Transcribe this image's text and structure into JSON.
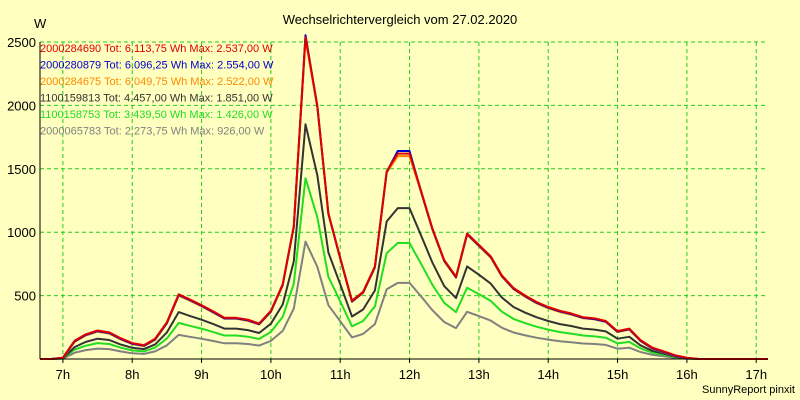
{
  "chart_data": {
    "type": "line",
    "title": "Wechselrichtervergleich vom 27.02.2020",
    "ylabel": "W",
    "xlabel": "",
    "credit": "SunnyReport pinxit",
    "xlim": [
      6.67,
      17.17
    ],
    "ylim": [
      0,
      2500
    ],
    "yticks": [
      500,
      1000,
      1500,
      2000,
      2500
    ],
    "xticks": [
      7,
      8,
      9,
      10,
      11,
      12,
      13,
      14,
      15,
      16,
      17
    ],
    "xtick_labels": [
      "7h",
      "8h",
      "9h",
      "10h",
      "11h",
      "12h",
      "13h",
      "14h",
      "15h",
      "16h",
      "17h"
    ],
    "grid": true,
    "legend_position": "top-left",
    "x": [
      6.67,
      6.83,
      7.0,
      7.17,
      7.33,
      7.5,
      7.67,
      7.83,
      8.0,
      8.17,
      8.33,
      8.5,
      8.67,
      8.83,
      9.0,
      9.17,
      9.33,
      9.5,
      9.67,
      9.83,
      10.0,
      10.17,
      10.33,
      10.5,
      10.67,
      10.83,
      11.0,
      11.17,
      11.33,
      11.5,
      11.67,
      11.83,
      12.0,
      12.17,
      12.33,
      12.5,
      12.67,
      12.83,
      13.0,
      13.17,
      13.33,
      13.5,
      13.67,
      13.83,
      14.0,
      14.17,
      14.33,
      14.5,
      14.67,
      14.83,
      15.0,
      15.17,
      15.33,
      15.5,
      15.67,
      15.83,
      16.0,
      16.17,
      16.33,
      16.5,
      16.67,
      16.83,
      17.0,
      17.17
    ],
    "series": [
      {
        "name": "2000284690 Tot: 6.113,75 Wh Max: 2.537,00 W",
        "color": "#e00000",
        "values": [
          0,
          0,
          10,
          145,
          195,
          225,
          210,
          165,
          125,
          110,
          160,
          290,
          510,
          470,
          425,
          375,
          325,
          325,
          310,
          280,
          380,
          590,
          1050,
          2537,
          2000,
          1150,
          800,
          460,
          530,
          730,
          1480,
          1620,
          1620,
          1320,
          1030,
          780,
          650,
          990,
          900,
          810,
          660,
          560,
          500,
          450,
          410,
          380,
          360,
          330,
          320,
          300,
          220,
          240,
          150,
          90,
          60,
          30,
          10,
          0,
          0,
          0,
          0,
          0,
          0,
          0
        ]
      },
      {
        "name": "2000280879 Tot: 6.096,25 Wh Max: 2.554,00 W",
        "color": "#0000cc",
        "values": [
          0,
          0,
          10,
          140,
          190,
          220,
          205,
          160,
          120,
          105,
          155,
          285,
          505,
          465,
          420,
          370,
          320,
          320,
          305,
          275,
          375,
          585,
          1045,
          2554,
          1995,
          1145,
          795,
          455,
          525,
          725,
          1475,
          1640,
          1640,
          1315,
          1025,
          775,
          645,
          985,
          895,
          805,
          655,
          555,
          495,
          445,
          405,
          375,
          355,
          325,
          315,
          295,
          215,
          235,
          145,
          85,
          55,
          25,
          8,
          0,
          0,
          0,
          0,
          0,
          0,
          0
        ]
      },
      {
        "name": "2000284675 Tot: 6.049,75 Wh Max: 2.522,00 W",
        "color": "#ff8800",
        "values": [
          0,
          0,
          8,
          135,
          185,
          215,
          200,
          155,
          118,
          102,
          150,
          280,
          500,
          460,
          415,
          365,
          318,
          318,
          300,
          272,
          370,
          580,
          1040,
          2522,
          1985,
          1140,
          790,
          450,
          520,
          720,
          1470,
          1600,
          1600,
          1310,
          1020,
          770,
          640,
          980,
          890,
          800,
          650,
          550,
          490,
          440,
          400,
          370,
          350,
          322,
          312,
          292,
          212,
          232,
          142,
          82,
          52,
          22,
          6,
          0,
          0,
          0,
          0,
          0,
          0,
          0
        ]
      },
      {
        "name": "1100159813 Tot: 4.457,00 Wh Max: 1.851,00 W",
        "color": "#333333",
        "values": [
          0,
          0,
          5,
          95,
          135,
          160,
          150,
          115,
          88,
          78,
          115,
          210,
          370,
          340,
          310,
          275,
          240,
          240,
          228,
          205,
          278,
          430,
          770,
          1851,
          1450,
          840,
          590,
          335,
          390,
          540,
          1085,
          1190,
          1190,
          970,
          760,
          575,
          480,
          730,
          665,
          595,
          485,
          410,
          365,
          330,
          300,
          275,
          260,
          240,
          232,
          218,
          160,
          175,
          108,
          65,
          42,
          18,
          5,
          0,
          0,
          0,
          0,
          0,
          0,
          0
        ]
      },
      {
        "name": "1100158753 Tot: 3.439,50 Wh Max: 1.426,00 W",
        "color": "#22dd22",
        "values": [
          0,
          0,
          4,
          75,
          105,
          125,
          118,
          90,
          68,
          60,
          90,
          162,
          285,
          262,
          240,
          212,
          185,
          185,
          176,
          158,
          214,
          332,
          595,
          1426,
          1118,
          648,
          455,
          258,
          300,
          415,
          835,
          915,
          915,
          748,
          585,
          443,
          370,
          562,
          512,
          458,
          374,
          316,
          282,
          255,
          232,
          212,
          200,
          185,
          178,
          168,
          123,
          135,
          84,
          50,
          32,
          14,
          4,
          0,
          0,
          0,
          0,
          0,
          0,
          0
        ]
      },
      {
        "name": "2000065783 Tot: 2.273,75 Wh Max: 926,00 W",
        "color": "#808080",
        "values": [
          0,
          0,
          3,
          50,
          70,
          82,
          78,
          60,
          45,
          40,
          60,
          108,
          190,
          175,
          160,
          142,
          124,
          124,
          118,
          106,
          143,
          222,
          398,
          926,
          728,
          424,
          298,
          170,
          198,
          275,
          550,
          600,
          600,
          492,
          385,
          292,
          244,
          372,
          338,
          303,
          247,
          209,
          186,
          168,
          153,
          140,
          132,
          122,
          118,
          111,
          81,
          89,
          55,
          33,
          21,
          9,
          2,
          0,
          0,
          0,
          0,
          0,
          0,
          0
        ]
      }
    ]
  }
}
